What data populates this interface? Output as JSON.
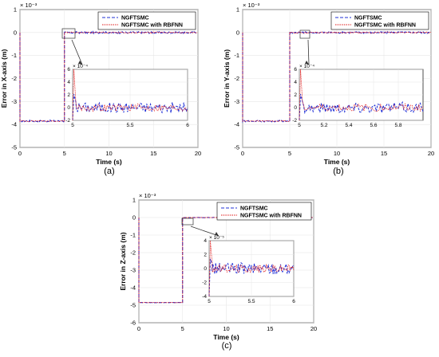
{
  "colors": {
    "ngftsmc": "#1f2fd6",
    "rbfnn": "#e01515",
    "axis": "#000000",
    "grid": "#e6e6e6"
  },
  "chart_data": [
    {
      "type": "line",
      "panel_label": "(a)",
      "xlabel": "Time (s)",
      "ylabel": "Error in X-axis (m)",
      "exponent_label": "× 10⁻³",
      "xlim": [
        0,
        20
      ],
      "ylim": [
        -5,
        1
      ],
      "xticks": [
        "0",
        "5",
        "10",
        "15",
        "20"
      ],
      "yticks": [
        "-5",
        "-4",
        "-3",
        "-2",
        "-1",
        "0",
        "1"
      ],
      "legend_position": "top-right",
      "series": [
        {
          "name": "NGFTSMC",
          "style": "dashed",
          "x": [
            0,
            0,
            5,
            5,
            20
          ],
          "y": [
            0,
            -3.85,
            -3.85,
            0,
            0
          ],
          "noise_amplitude": 0.08
        },
        {
          "name": "NGFTSMC with RBFNN",
          "style": "dotted",
          "x": [
            0,
            0,
            5,
            5,
            20
          ],
          "y": [
            0,
            -3.85,
            -3.85,
            0,
            0
          ],
          "noise_amplitude": 0.05
        }
      ],
      "inset": {
        "xlim": [
          5,
          6
        ],
        "ylim": [
          -2,
          6
        ],
        "xticks": [
          "5",
          "5.5",
          "6"
        ],
        "yticks": [
          "-2",
          "0",
          "2",
          "4",
          "6"
        ],
        "exponent_label": "× 10⁻⁴",
        "peak_value": 6
      }
    },
    {
      "type": "line",
      "panel_label": "(b)",
      "xlabel": "Time (s)",
      "ylabel": "Error in Y-axis (m)",
      "exponent_label": "× 10⁻³",
      "xlim": [
        0,
        20
      ],
      "ylim": [
        -5,
        1
      ],
      "xticks": [
        "0",
        "5",
        "10",
        "15",
        "20"
      ],
      "yticks": [
        "-5",
        "-4",
        "-3",
        "-2",
        "-1",
        "0",
        "1"
      ],
      "legend_position": "top-right",
      "series": [
        {
          "name": "NGFTSMC",
          "style": "dashed",
          "x": [
            0,
            0,
            5,
            5,
            20
          ],
          "y": [
            0,
            -3.85,
            -3.85,
            0,
            0
          ],
          "noise_amplitude": 0.08
        },
        {
          "name": "NGFTSMC with RBFNN",
          "style": "dotted",
          "x": [
            0,
            0,
            5,
            5,
            20
          ],
          "y": [
            0,
            -3.85,
            -3.85,
            0,
            0
          ],
          "noise_amplitude": 0.05
        }
      ],
      "inset": {
        "xlim": [
          5,
          6
        ],
        "ylim": [
          -2,
          6
        ],
        "xticks": [
          "5",
          "5.2",
          "5.4",
          "5.6",
          "5.8"
        ],
        "yticks": [
          "-2",
          "0",
          "2",
          "4",
          "6"
        ],
        "exponent_label": "× 10⁻⁴",
        "peak_value": 6
      }
    },
    {
      "type": "line",
      "panel_label": "(c)",
      "xlabel": "Time (s)",
      "ylabel": "Error in Z-axis (m)",
      "exponent_label": "× 10⁻³",
      "xlim": [
        0,
        20
      ],
      "ylim": [
        -6,
        1
      ],
      "xticks": [
        "0",
        "5",
        "10",
        "15",
        "20"
      ],
      "yticks": [
        "-6",
        "-5",
        "-4",
        "-3",
        "-2",
        "-1",
        "0",
        "1"
      ],
      "legend_position": "top-right",
      "series": [
        {
          "name": "NGFTSMC",
          "style": "dashed",
          "x": [
            0,
            0,
            5,
            5,
            20
          ],
          "y": [
            0,
            -4.85,
            -4.85,
            0,
            0
          ],
          "noise_amplitude": 0.02
        },
        {
          "name": "NGFTSMC with RBFNN",
          "style": "dotted",
          "x": [
            0,
            0,
            5,
            5,
            20
          ],
          "y": [
            0,
            -4.85,
            -4.85,
            0,
            0
          ],
          "noise_amplitude": 0.015
        }
      ],
      "inset": {
        "xlim": [
          5,
          6
        ],
        "ylim": [
          -4,
          4
        ],
        "xticks": [
          "5",
          "5.5",
          "6"
        ],
        "yticks": [
          "-4",
          "-2",
          "0",
          "2",
          "4"
        ],
        "exponent_label": "× 10⁻⁵",
        "peak_value": 4
      }
    }
  ]
}
